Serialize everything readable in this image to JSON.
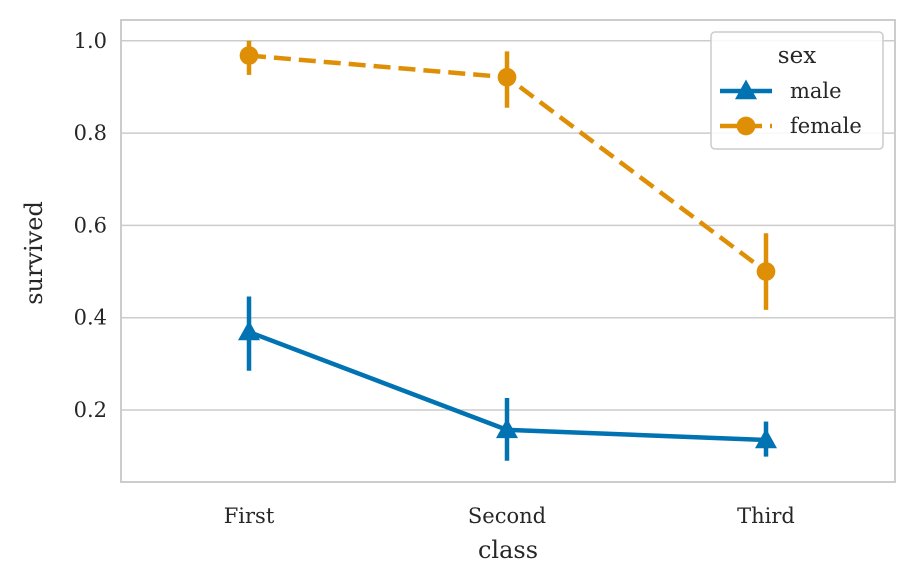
{
  "chart_data": {
    "type": "line",
    "title": "",
    "xlabel": "class",
    "ylabel": "survived",
    "categories": [
      "First",
      "Second",
      "Third"
    ],
    "ylim": [
      0.044,
      1.045
    ],
    "yticks": [
      0.2,
      0.4,
      0.6,
      0.8,
      1.0
    ],
    "ytick_labels": [
      "0.2",
      "0.4",
      "0.6",
      "0.8",
      "1.0"
    ],
    "grid": true,
    "legend": {
      "title": "sex",
      "placement": "top-right"
    },
    "series": [
      {
        "name": "male",
        "color": "#0173b2",
        "marker": "triangle",
        "linestyle": "solid",
        "values": [
          0.369,
          0.157,
          0.135
        ],
        "ci_low": [
          0.285,
          0.09,
          0.099
        ],
        "ci_high": [
          0.446,
          0.226,
          0.175
        ]
      },
      {
        "name": "female",
        "color": "#de8f05",
        "marker": "circle",
        "linestyle": "dashed",
        "values": [
          0.968,
          0.921,
          0.5
        ],
        "ci_low": [
          0.926,
          0.855,
          0.417
        ],
        "ci_high": [
          1.0,
          0.977,
          0.583
        ]
      }
    ]
  }
}
